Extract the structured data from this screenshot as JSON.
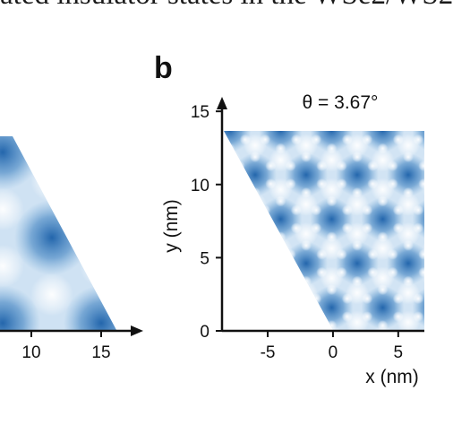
{
  "header": {
    "caption_fragment": "ated insulator states in the WSe2/WS2"
  },
  "panel_a": {
    "x_ticks": [
      "10",
      "15"
    ]
  },
  "panel_b": {
    "label": "b",
    "angle_label": "θ = 3.67°",
    "chart_data": {
      "type": "heatmap",
      "title": "θ = 3.67°",
      "xlabel": "x (nm)",
      "ylabel": "y (nm)",
      "x_ticks": [
        -5,
        0,
        5
      ],
      "y_ticks": [
        0,
        5,
        10,
        15
      ],
      "xlim": [
        -8.5,
        7
      ],
      "ylim": [
        0,
        15.5
      ],
      "colormap": [
        "#ffffff",
        "#1a5fa8"
      ]
    }
  },
  "colors": {
    "dark_blue": "#1a5fa8",
    "light_blue": "#e8f1fa"
  }
}
